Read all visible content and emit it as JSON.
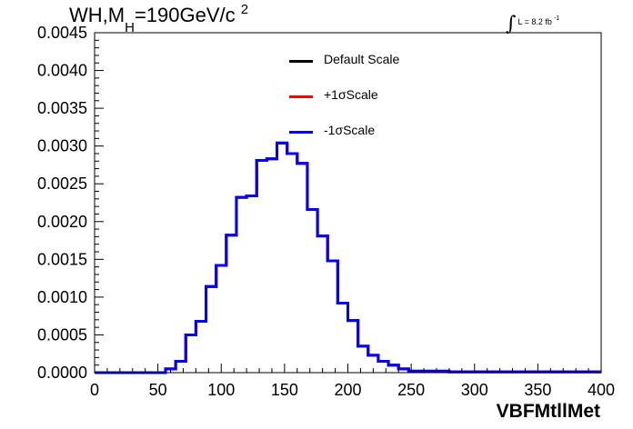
{
  "title": {
    "prefix": "WH,M",
    "sub": "H",
    "rest": "=190GeV/c",
    "sup": "2"
  },
  "lumi": {
    "integral": "∫",
    "text": "L = 8.2 fb",
    "sup": "-1"
  },
  "chart_data": {
    "type": "line",
    "xlabel": "VBFMtllMet",
    "ylabel": "",
    "xlim": [
      0,
      400
    ],
    "ylim": [
      0,
      0.0045
    ],
    "xticks": [
      0,
      50,
      100,
      150,
      200,
      250,
      300,
      350,
      400
    ],
    "xtick_labels": [
      "0",
      "50",
      "100",
      "150",
      "200",
      "250",
      "300",
      "350",
      "400"
    ],
    "yticks": [
      0,
      0.0005,
      0.001,
      0.0015,
      0.002,
      0.0025,
      0.003,
      0.0035,
      0.004,
      0.0045
    ],
    "ytick_labels": [
      "0.0000",
      "0.0005",
      "0.0010",
      "0.0015",
      "0.0020",
      "0.0025",
      "0.0030",
      "0.0035",
      "0.0040",
      "0.0045"
    ],
    "grid": false,
    "legend_position": "top-center",
    "histogram": true,
    "bin_width": 8,
    "bin_edges_start": 0,
    "series": [
      {
        "name": "Default Scale",
        "color": "#000000",
        "values": [
          0,
          0,
          0,
          0,
          0,
          0,
          0,
          5e-05,
          0.00015,
          0.0005,
          0.00068,
          0.00114,
          0.00142,
          0.00182,
          0.00232,
          0.00234,
          0.00281,
          0.00283,
          0.00304,
          0.0029,
          0.00277,
          0.00216,
          0.00181,
          0.00148,
          0.00092,
          0.00069,
          0.00035,
          0.00023,
          0.00015,
          0.0001,
          5e-05,
          2e-05,
          2e-05,
          2e-05,
          2e-05,
          1e-05,
          1e-05,
          1e-05,
          1e-05,
          1e-05,
          1e-05,
          1e-05,
          1e-05,
          1e-05,
          1e-05,
          1e-05,
          1e-05,
          1e-05,
          1e-05,
          1e-05
        ]
      },
      {
        "name": "+1σScale",
        "color": "#ff0000",
        "values": [
          0,
          0,
          0,
          0,
          0,
          0,
          0,
          5e-05,
          0.00015,
          0.0005,
          0.00068,
          0.00114,
          0.00142,
          0.00182,
          0.00232,
          0.00234,
          0.00281,
          0.00283,
          0.00304,
          0.0029,
          0.00277,
          0.00216,
          0.00181,
          0.00148,
          0.00092,
          0.00069,
          0.00035,
          0.00023,
          0.00015,
          0.0001,
          5e-05,
          2e-05,
          2e-05,
          2e-05,
          2e-05,
          1e-05,
          1e-05,
          1e-05,
          1e-05,
          1e-05,
          1e-05,
          1e-05,
          1e-05,
          1e-05,
          1e-05,
          1e-05,
          1e-05,
          1e-05,
          1e-05,
          1e-05
        ]
      },
      {
        "name": "-1σScale",
        "color": "#0000ff",
        "values": [
          0,
          0,
          0,
          0,
          0,
          0,
          0,
          5e-05,
          0.00015,
          0.0005,
          0.00068,
          0.00114,
          0.00142,
          0.00182,
          0.00232,
          0.00234,
          0.00281,
          0.00283,
          0.00304,
          0.0029,
          0.00277,
          0.00216,
          0.00181,
          0.00148,
          0.00092,
          0.00069,
          0.00035,
          0.00023,
          0.00015,
          0.0001,
          5e-05,
          2e-05,
          2e-05,
          2e-05,
          2e-05,
          1e-05,
          1e-05,
          1e-05,
          1e-05,
          1e-05,
          1e-05,
          1e-05,
          1e-05,
          1e-05,
          1e-05,
          1e-05,
          1e-05,
          1e-05,
          1e-05,
          1e-05
        ]
      }
    ]
  }
}
